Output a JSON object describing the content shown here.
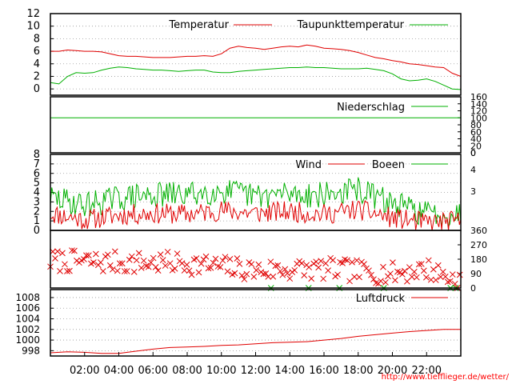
{
  "credit_url": "http://www.tiefflieger.de/wetter/",
  "x_axis": {
    "tick_labels": [
      "02:00",
      "04:00",
      "06:00",
      "08:00",
      "10:00",
      "12:00",
      "14:00",
      "16:00",
      "18:00",
      "20:00",
      "22:00"
    ],
    "tick_hours": [
      2,
      4,
      6,
      8,
      10,
      12,
      14,
      16,
      18,
      20,
      22
    ],
    "range_hours": [
      0,
      24
    ]
  },
  "colors": {
    "red": "#e00000",
    "green": "#00b000",
    "grid": "#999999",
    "axis": "#000000",
    "credit": "#ff0000"
  },
  "chart_data": [
    {
      "type": "line",
      "id": "temperature",
      "xlabel": "",
      "ylabel": "",
      "ylim": [
        -1,
        12
      ],
      "y_ticks": [
        0,
        2,
        4,
        6,
        8,
        10,
        12
      ],
      "legend_position": "top-right",
      "grid": true,
      "series": [
        {
          "name": "Temperatur",
          "color": "red",
          "x": [
            0,
            0.5,
            1,
            1.5,
            2,
            2.5,
            3,
            3.5,
            4,
            4.5,
            5,
            5.5,
            6,
            6.5,
            7,
            7.5,
            8,
            8.5,
            9,
            9.5,
            10,
            10.5,
            11,
            11.5,
            12,
            12.5,
            13,
            13.5,
            14,
            14.5,
            15,
            15.5,
            16,
            16.5,
            17,
            17.5,
            18,
            18.5,
            19,
            19.5,
            20,
            20.5,
            21,
            21.5,
            22,
            22.5,
            23,
            23.5,
            24
          ],
          "values": [
            6,
            6,
            6.2,
            6.1,
            6,
            6,
            5.9,
            5.6,
            5.3,
            5.2,
            5.2,
            5.1,
            5,
            5,
            5,
            5.1,
            5.2,
            5.2,
            5.3,
            5.2,
            5.6,
            6.5,
            6.8,
            6.6,
            6.5,
            6.3,
            6.5,
            6.7,
            6.8,
            6.7,
            7,
            6.8,
            6.5,
            6.4,
            6.3,
            6.1,
            5.8,
            5.4,
            5,
            4.8,
            4.5,
            4.3,
            4,
            3.9,
            3.7,
            3.5,
            3.4,
            2.5,
            2
          ]
        },
        {
          "name": "Taupunkttemperatur",
          "color": "green",
          "x": [
            0,
            0.5,
            1,
            1.5,
            2,
            2.5,
            3,
            3.5,
            4,
            4.5,
            5,
            5.5,
            6,
            6.5,
            7,
            7.5,
            8,
            8.5,
            9,
            9.5,
            10,
            10.5,
            11,
            11.5,
            12,
            12.5,
            13,
            13.5,
            14,
            14.5,
            15,
            15.5,
            16,
            16.5,
            17,
            17.5,
            18,
            18.5,
            19,
            19.5,
            20,
            20.5,
            21,
            21.5,
            22,
            22.5,
            23,
            23.5,
            24
          ],
          "values": [
            1,
            0.8,
            2,
            2.6,
            2.5,
            2.6,
            3,
            3.3,
            3.5,
            3.4,
            3.2,
            3.1,
            3,
            3,
            2.9,
            2.8,
            2.9,
            3,
            3,
            2.7,
            2.6,
            2.6,
            2.8,
            2.9,
            3,
            3.1,
            3.2,
            3.3,
            3.4,
            3.4,
            3.5,
            3.4,
            3.4,
            3.3,
            3.2,
            3.2,
            3.2,
            3.3,
            3.1,
            2.9,
            2.4,
            1.6,
            1.3,
            1.4,
            1.6,
            1.2,
            0.6,
            0,
            -0.1
          ]
        }
      ]
    },
    {
      "type": "line",
      "id": "precipitation",
      "xlabel": "",
      "ylabel": "",
      "ylim": [
        0,
        160
      ],
      "y_ticks_right": [
        0,
        20,
        40,
        60,
        80,
        100,
        120,
        140,
        160
      ],
      "legend_position": "top-right",
      "series": [
        {
          "name": "Niederschlag",
          "color": "green",
          "x": [
            0,
            24
          ],
          "values": [
            100,
            100
          ]
        }
      ]
    },
    {
      "type": "line",
      "id": "wind",
      "xlabel": "",
      "ylabel": "",
      "ylim": [
        0,
        8
      ],
      "y_ticks": [
        0,
        1,
        2,
        3,
        4,
        5,
        6,
        7,
        8
      ],
      "right_tick_labels": [
        "3",
        "4",
        "0"
      ],
      "legend_position": "top-right",
      "grid": true,
      "series": [
        {
          "name": "Wind",
          "color": "red",
          "seed": 11,
          "x_step": 0.08,
          "profile_x": [
            0,
            2,
            4,
            6,
            8,
            10,
            12,
            14,
            16,
            18,
            20,
            22,
            24
          ],
          "profile_values": [
            1.8,
            1.1,
            1.6,
            1.8,
            1.7,
            2.1,
            1.8,
            2.0,
            1.7,
            2.2,
            1.3,
            0.8,
            1.0
          ],
          "amplitude": 1.1
        },
        {
          "name": "Boeen",
          "color": "green",
          "seed": 29,
          "x_step": 0.08,
          "profile_x": [
            0,
            2,
            4,
            6,
            8,
            10,
            12,
            14,
            16,
            18,
            20,
            22,
            24
          ],
          "profile_values": [
            3.4,
            2.7,
            3.4,
            3.7,
            3.8,
            4.2,
            3.6,
            3.9,
            3.7,
            4.3,
            2.8,
            1.8,
            1.7
          ],
          "amplitude": 1.4
        }
      ]
    },
    {
      "type": "scatter",
      "id": "wind_direction",
      "xlabel": "",
      "ylabel": "",
      "ylim": [
        0,
        360
      ],
      "y_ticks_right": [
        0,
        90,
        180,
        270,
        360
      ],
      "legend_position": "none",
      "series": [
        {
          "name": "",
          "color": "red",
          "marker": "x",
          "seed": 7,
          "x_step": 0.14,
          "profile_x": [
            0,
            4,
            8,
            12,
            16,
            20,
            22,
            24
          ],
          "profile_values": [
            170,
            160,
            155,
            110,
            120,
            90,
            120,
            40
          ],
          "spread": 70
        },
        {
          "name": "",
          "color": "green",
          "marker": "x",
          "x": [
            12.9,
            15.1,
            16.9,
            19.5,
            23.4,
            23.7
          ],
          "values": [
            0,
            0,
            0,
            0,
            0,
            0
          ]
        }
      ]
    },
    {
      "type": "line",
      "id": "pressure",
      "xlabel": "",
      "ylabel": "",
      "ylim": [
        997,
        1009.5
      ],
      "y_ticks": [
        998,
        1000,
        1002,
        1004,
        1006,
        1008
      ],
      "legend_position": "top-right",
      "grid": true,
      "series": [
        {
          "name": "Luftdruck",
          "color": "red",
          "x": [
            0,
            1,
            2,
            3,
            4,
            5,
            6,
            7,
            8,
            9,
            10,
            11,
            12,
            13,
            14,
            15,
            16,
            17,
            18,
            19,
            20,
            21,
            22,
            23,
            24
          ],
          "values": [
            997.6,
            997.8,
            997.7,
            997.5,
            997.5,
            997.9,
            998.3,
            998.6,
            998.7,
            998.8,
            999.0,
            999.1,
            999.3,
            999.5,
            999.6,
            999.7,
            1000.0,
            1000.3,
            1000.7,
            1001.0,
            1001.3,
            1001.6,
            1001.8,
            1002.0,
            1002.0
          ]
        }
      ]
    }
  ]
}
